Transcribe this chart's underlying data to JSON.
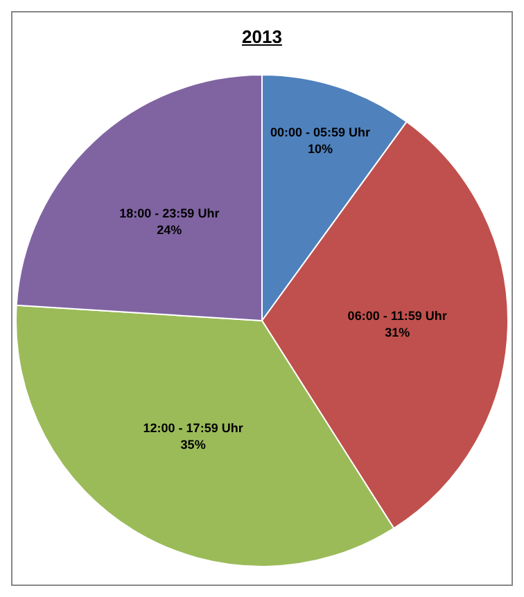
{
  "chart_data": {
    "type": "pie",
    "title": "2013",
    "categories": [
      "00:00 - 05:59 Uhr",
      "06:00 - 11:59 Uhr",
      "12:00 - 17:59 Uhr",
      "18:00 - 23:59 Uhr"
    ],
    "values": [
      10,
      31,
      35,
      24
    ],
    "value_labels": [
      "10%",
      "31%",
      "35%",
      "24%"
    ],
    "colors": [
      "#4f81bd",
      "#c0504d",
      "#9bbb59",
      "#8064a2"
    ],
    "legend": false
  }
}
